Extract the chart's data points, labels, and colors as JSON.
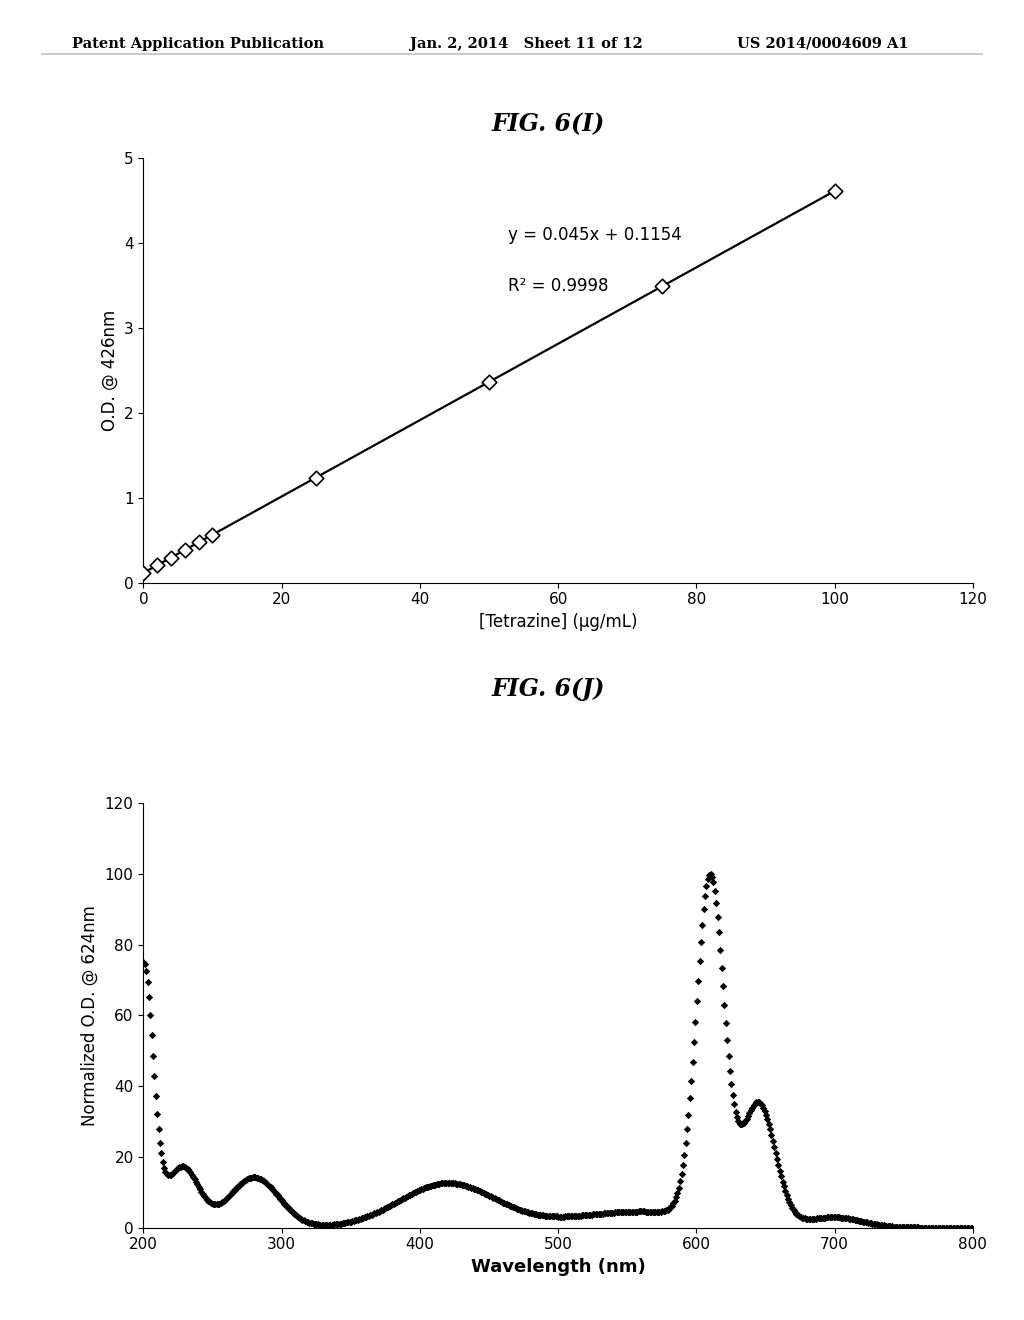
{
  "header_left": "Patent Application Publication",
  "header_mid": "Jan. 2, 2014   Sheet 11 of 12",
  "header_right": "US 2014/0004609 A1",
  "fig_i_title": "FIG. 6(I)",
  "fig_j_title": "FIG. 6(J)",
  "fig_i": {
    "scatter_x": [
      0,
      2,
      4,
      6,
      8,
      10,
      25,
      50,
      75,
      100
    ],
    "scatter_y": [
      0.115,
      0.205,
      0.295,
      0.385,
      0.475,
      0.565,
      1.238,
      2.365,
      3.492,
      4.619
    ],
    "line_x": [
      0,
      100
    ],
    "line_slope": 0.045,
    "line_intercept": 0.1154,
    "equation": "y = 0.045x + 0.1154",
    "r_squared": "R² = 0.9998",
    "xlabel": "[Tetrazine] (µg/mL)",
    "ylabel": "O.D. @ 426nm",
    "xlim": [
      0,
      120
    ],
    "ylim": [
      0,
      5
    ],
    "xticks": [
      0,
      20,
      40,
      60,
      80,
      100,
      120
    ],
    "yticks": [
      0,
      1,
      2,
      3,
      4,
      5
    ]
  },
  "fig_j": {
    "xlabel": "Wavelength (nm)",
    "ylabel": "Normalized O.D. @ 624nm",
    "xlim": [
      200,
      800
    ],
    "ylim": [
      0,
      120
    ],
    "xticks": [
      200,
      300,
      400,
      500,
      600,
      700,
      800
    ],
    "yticks": [
      0,
      20,
      40,
      60,
      80,
      100,
      120
    ]
  },
  "background_color": "#ffffff",
  "text_color": "#000000",
  "line_color": "#000000",
  "scatter_color": "#000000"
}
